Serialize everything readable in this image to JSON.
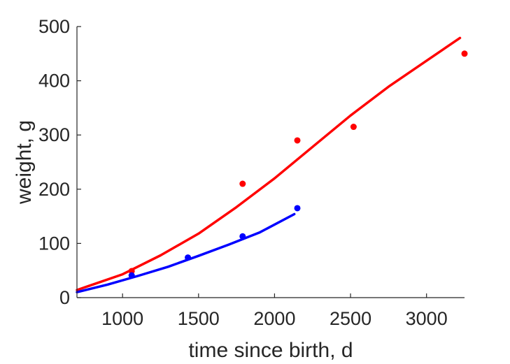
{
  "chart_data": {
    "type": "scatter",
    "title": "",
    "xlabel": "time since birth, d",
    "ylabel": "weight, g",
    "xlim": [
      700,
      3250
    ],
    "ylim": [
      0,
      500
    ],
    "xticks": [
      1000,
      1500,
      2000,
      2500,
      3000
    ],
    "yticks": [
      0,
      100,
      200,
      300,
      400,
      500
    ],
    "grid": false,
    "colors": {
      "red": "#ff0000",
      "blue": "#0000ff"
    },
    "series": [
      {
        "color": "#ff0000",
        "points": [
          {
            "x": 1060,
            "y": 49
          },
          {
            "x": 1790,
            "y": 210
          },
          {
            "x": 2150,
            "y": 290
          },
          {
            "x": 2520,
            "y": 315
          },
          {
            "x": 3250,
            "y": 450
          }
        ],
        "fit": [
          {
            "x": 700,
            "y": 14
          },
          {
            "x": 1000,
            "y": 43
          },
          {
            "x": 1250,
            "y": 78
          },
          {
            "x": 1500,
            "y": 118
          },
          {
            "x": 1750,
            "y": 167
          },
          {
            "x": 2000,
            "y": 220
          },
          {
            "x": 2250,
            "y": 278
          },
          {
            "x": 2500,
            "y": 336
          },
          {
            "x": 2750,
            "y": 389
          },
          {
            "x": 3000,
            "y": 437
          },
          {
            "x": 3220,
            "y": 479
          }
        ]
      },
      {
        "color": "#0000ff",
        "points": [
          {
            "x": 1060,
            "y": 41
          },
          {
            "x": 1430,
            "y": 74
          },
          {
            "x": 1790,
            "y": 113
          },
          {
            "x": 2150,
            "y": 165
          }
        ],
        "fit": [
          {
            "x": 700,
            "y": 10
          },
          {
            "x": 900,
            "y": 24
          },
          {
            "x": 1100,
            "y": 40
          },
          {
            "x": 1300,
            "y": 57
          },
          {
            "x": 1500,
            "y": 77
          },
          {
            "x": 1700,
            "y": 98
          },
          {
            "x": 1900,
            "y": 120
          },
          {
            "x": 2130,
            "y": 154
          }
        ]
      }
    ]
  }
}
